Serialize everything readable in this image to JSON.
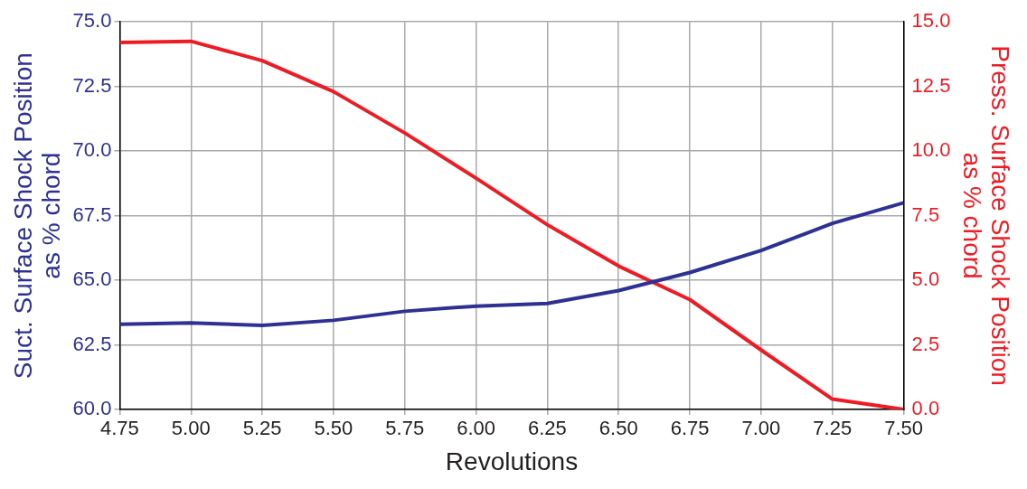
{
  "chart_data": {
    "type": "line",
    "xlabel": "Revolutions",
    "ylabel": "Suct. Surface Shock Position\nas % chord",
    "y2label": "Press. Surface Shock Position\nas % chord",
    "x": [
      4.75,
      5.0,
      5.25,
      5.5,
      5.75,
      6.0,
      6.25,
      6.5,
      6.75,
      7.0,
      7.25,
      7.5
    ],
    "series": [
      {
        "color": "#2e3192",
        "values": [
          63.3,
          63.35,
          63.25,
          63.45,
          63.8,
          64.0,
          64.1,
          64.6,
          65.3,
          66.15,
          67.2,
          68.0
        ]
      },
      {
        "color": "#ed1c24",
        "axis": "y2",
        "values": [
          14.2,
          14.25,
          13.5,
          12.3,
          10.7,
          8.95,
          7.15,
          5.55,
          4.25,
          2.3,
          0.4,
          0.0
        ]
      }
    ],
    "xlim": [
      4.75,
      7.5
    ],
    "xticks": [
      {
        "value": 4.75,
        "label": "4.75"
      },
      {
        "value": 5.0,
        "label": "5.00"
      },
      {
        "value": 5.25,
        "label": "5.25"
      },
      {
        "value": 5.5,
        "label": "5.50"
      },
      {
        "value": 5.75,
        "label": "5.75"
      },
      {
        "value": 6.0,
        "label": "6.00"
      },
      {
        "value": 6.25,
        "label": "6.25"
      },
      {
        "value": 6.5,
        "label": "6.50"
      },
      {
        "value": 6.75,
        "label": "6.75"
      },
      {
        "value": 7.0,
        "label": "7.00"
      },
      {
        "value": 7.25,
        "label": "7.25"
      },
      {
        "value": 7.5,
        "label": "7.50"
      }
    ],
    "ylim": [
      60,
      75
    ],
    "yticks": [
      {
        "value": 60,
        "label": "60.0"
      },
      {
        "value": 62.5,
        "label": "62.5"
      },
      {
        "value": 65,
        "label": "65.0"
      },
      {
        "value": 67.5,
        "label": "67.5"
      },
      {
        "value": 70,
        "label": "70.0"
      },
      {
        "value": 72.5,
        "label": "72.5"
      },
      {
        "value": 75,
        "label": "75.0"
      }
    ],
    "y2lim": [
      0,
      15
    ],
    "y2ticks": [
      {
        "value": 0,
        "label": "0.0"
      },
      {
        "value": 2.5,
        "label": "2.5"
      },
      {
        "value": 5,
        "label": "5.0"
      },
      {
        "value": 7.5,
        "label": "7.5"
      },
      {
        "value": 10,
        "label": "10.0"
      },
      {
        "value": 12.5,
        "label": "12.5"
      },
      {
        "value": 15,
        "label": "15.0"
      }
    ],
    "grid": true,
    "legend": false,
    "marker": "none",
    "line_style": "solid"
  }
}
